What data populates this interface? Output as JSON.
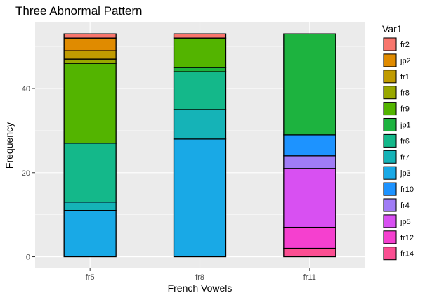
{
  "chart_data": {
    "type": "bar",
    "stacked": true,
    "title": "Three Abnormal Pattern",
    "xlabel": "French Vowels",
    "ylabel": "Frequency",
    "categories": [
      "fr5",
      "fr8",
      "fr11"
    ],
    "ylim": [
      0,
      55
    ],
    "yticks": [
      0,
      20,
      40
    ],
    "grid": true,
    "legend_position": "right",
    "legend_title": "Var1",
    "series": [
      {
        "name": "fr2",
        "color": "#F8766D",
        "values": [
          1,
          1,
          0
        ]
      },
      {
        "name": "jp2",
        "color": "#E08B00",
        "values": [
          3,
          0,
          0
        ]
      },
      {
        "name": "fr1",
        "color": "#C09B00",
        "values": [
          2,
          0,
          0
        ]
      },
      {
        "name": "fr8",
        "color": "#99A800",
        "values": [
          1,
          0,
          0
        ]
      },
      {
        "name": "fr9",
        "color": "#53B400",
        "values": [
          19,
          7,
          0
        ]
      },
      {
        "name": "jp1",
        "color": "#1DB33F",
        "values": [
          0,
          1,
          24
        ]
      },
      {
        "name": "fr6",
        "color": "#14B88A",
        "values": [
          14,
          9,
          0
        ]
      },
      {
        "name": "fr7",
        "color": "#15B3B7",
        "values": [
          2,
          7,
          0
        ]
      },
      {
        "name": "jp3",
        "color": "#19A9E6",
        "values": [
          11,
          28,
          0
        ]
      },
      {
        "name": "fr10",
        "color": "#1D93FF",
        "values": [
          0,
          0,
          5
        ]
      },
      {
        "name": "fr4",
        "color": "#A07CF6",
        "values": [
          0,
          0,
          3
        ]
      },
      {
        "name": "jp5",
        "color": "#D850F2",
        "values": [
          0,
          0,
          14
        ]
      },
      {
        "name": "fr12",
        "color": "#F540CF",
        "values": [
          0,
          0,
          5
        ]
      },
      {
        "name": "fr14",
        "color": "#FB4E92",
        "values": [
          0,
          0,
          2
        ]
      }
    ]
  }
}
